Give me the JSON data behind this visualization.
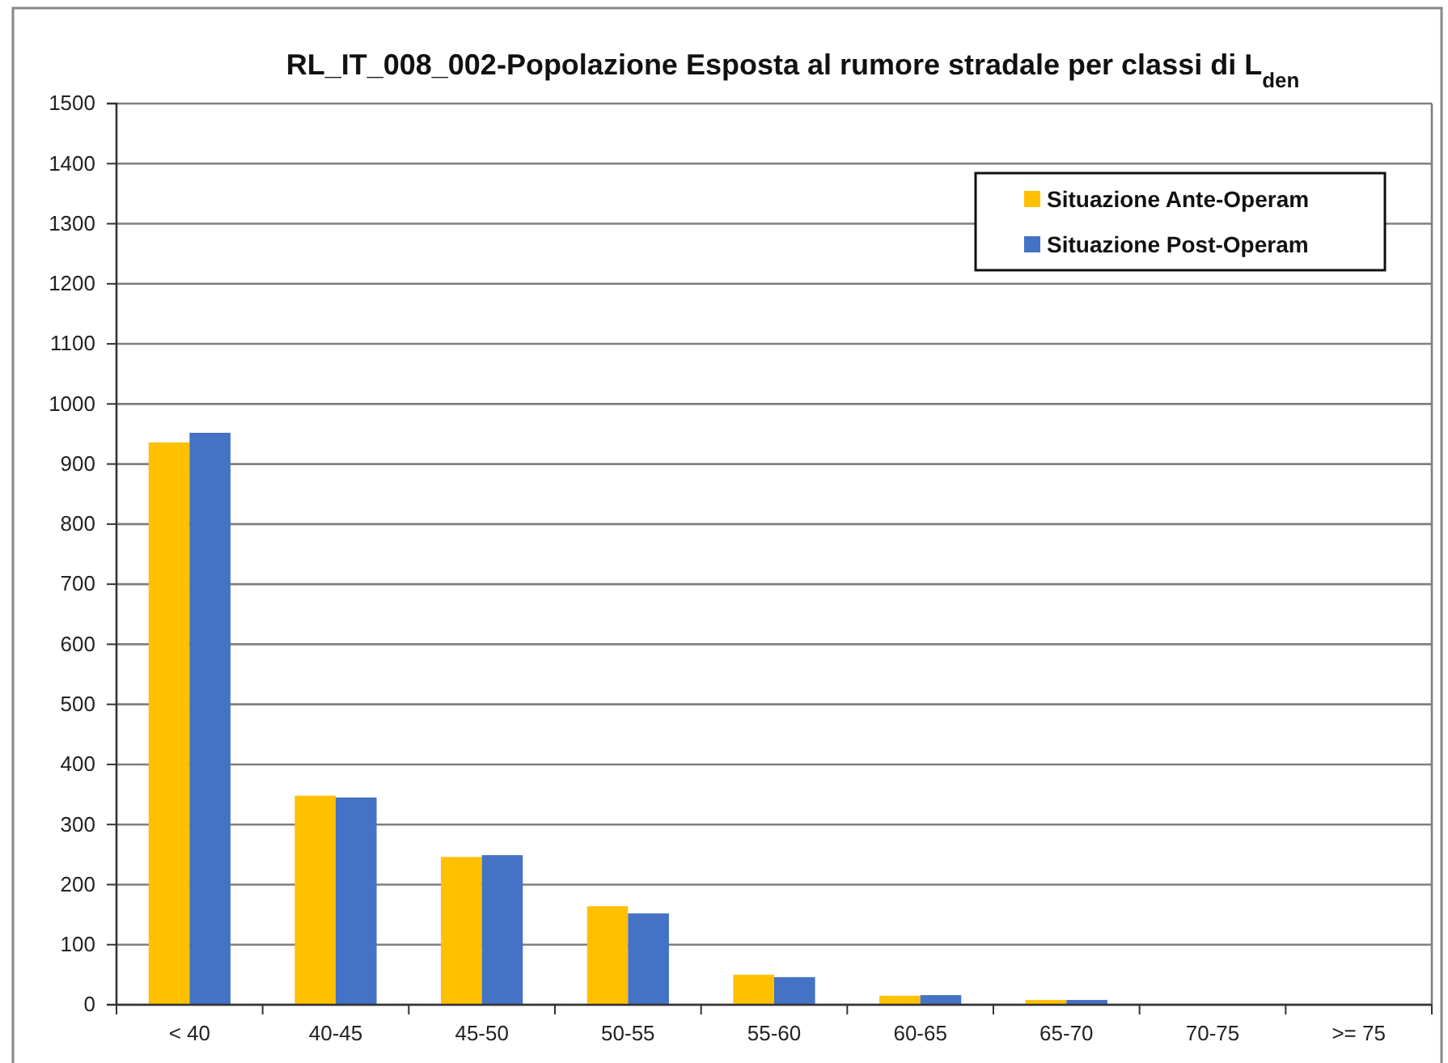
{
  "chart_data": {
    "type": "bar",
    "title": "RL_IT_008_002-Popolazione Esposta al rumore stradale per classi di L$_{den}$",
    "categories": [
      "< 40",
      "40-45",
      "45-50",
      "50-55",
      "55-60",
      "60-65",
      "65-70",
      "70-75",
      ">= 75"
    ],
    "series": [
      {
        "name": "Situazione Ante-Operam",
        "color": "#ffc000",
        "values": [
          936,
          348,
          246,
          164,
          50,
          15,
          8,
          0,
          0
        ]
      },
      {
        "name": "Situazione Post-Operam",
        "color": "#4472c4",
        "values": [
          952,
          345,
          249,
          152,
          46,
          16,
          8,
          0,
          0
        ]
      }
    ],
    "ylim": [
      0,
      1500
    ],
    "yticks": [
      0,
      100,
      200,
      300,
      400,
      500,
      600,
      700,
      800,
      900,
      1000,
      1100,
      1200,
      1300,
      1400,
      1500
    ],
    "grid": "y",
    "legend": "top right"
  }
}
